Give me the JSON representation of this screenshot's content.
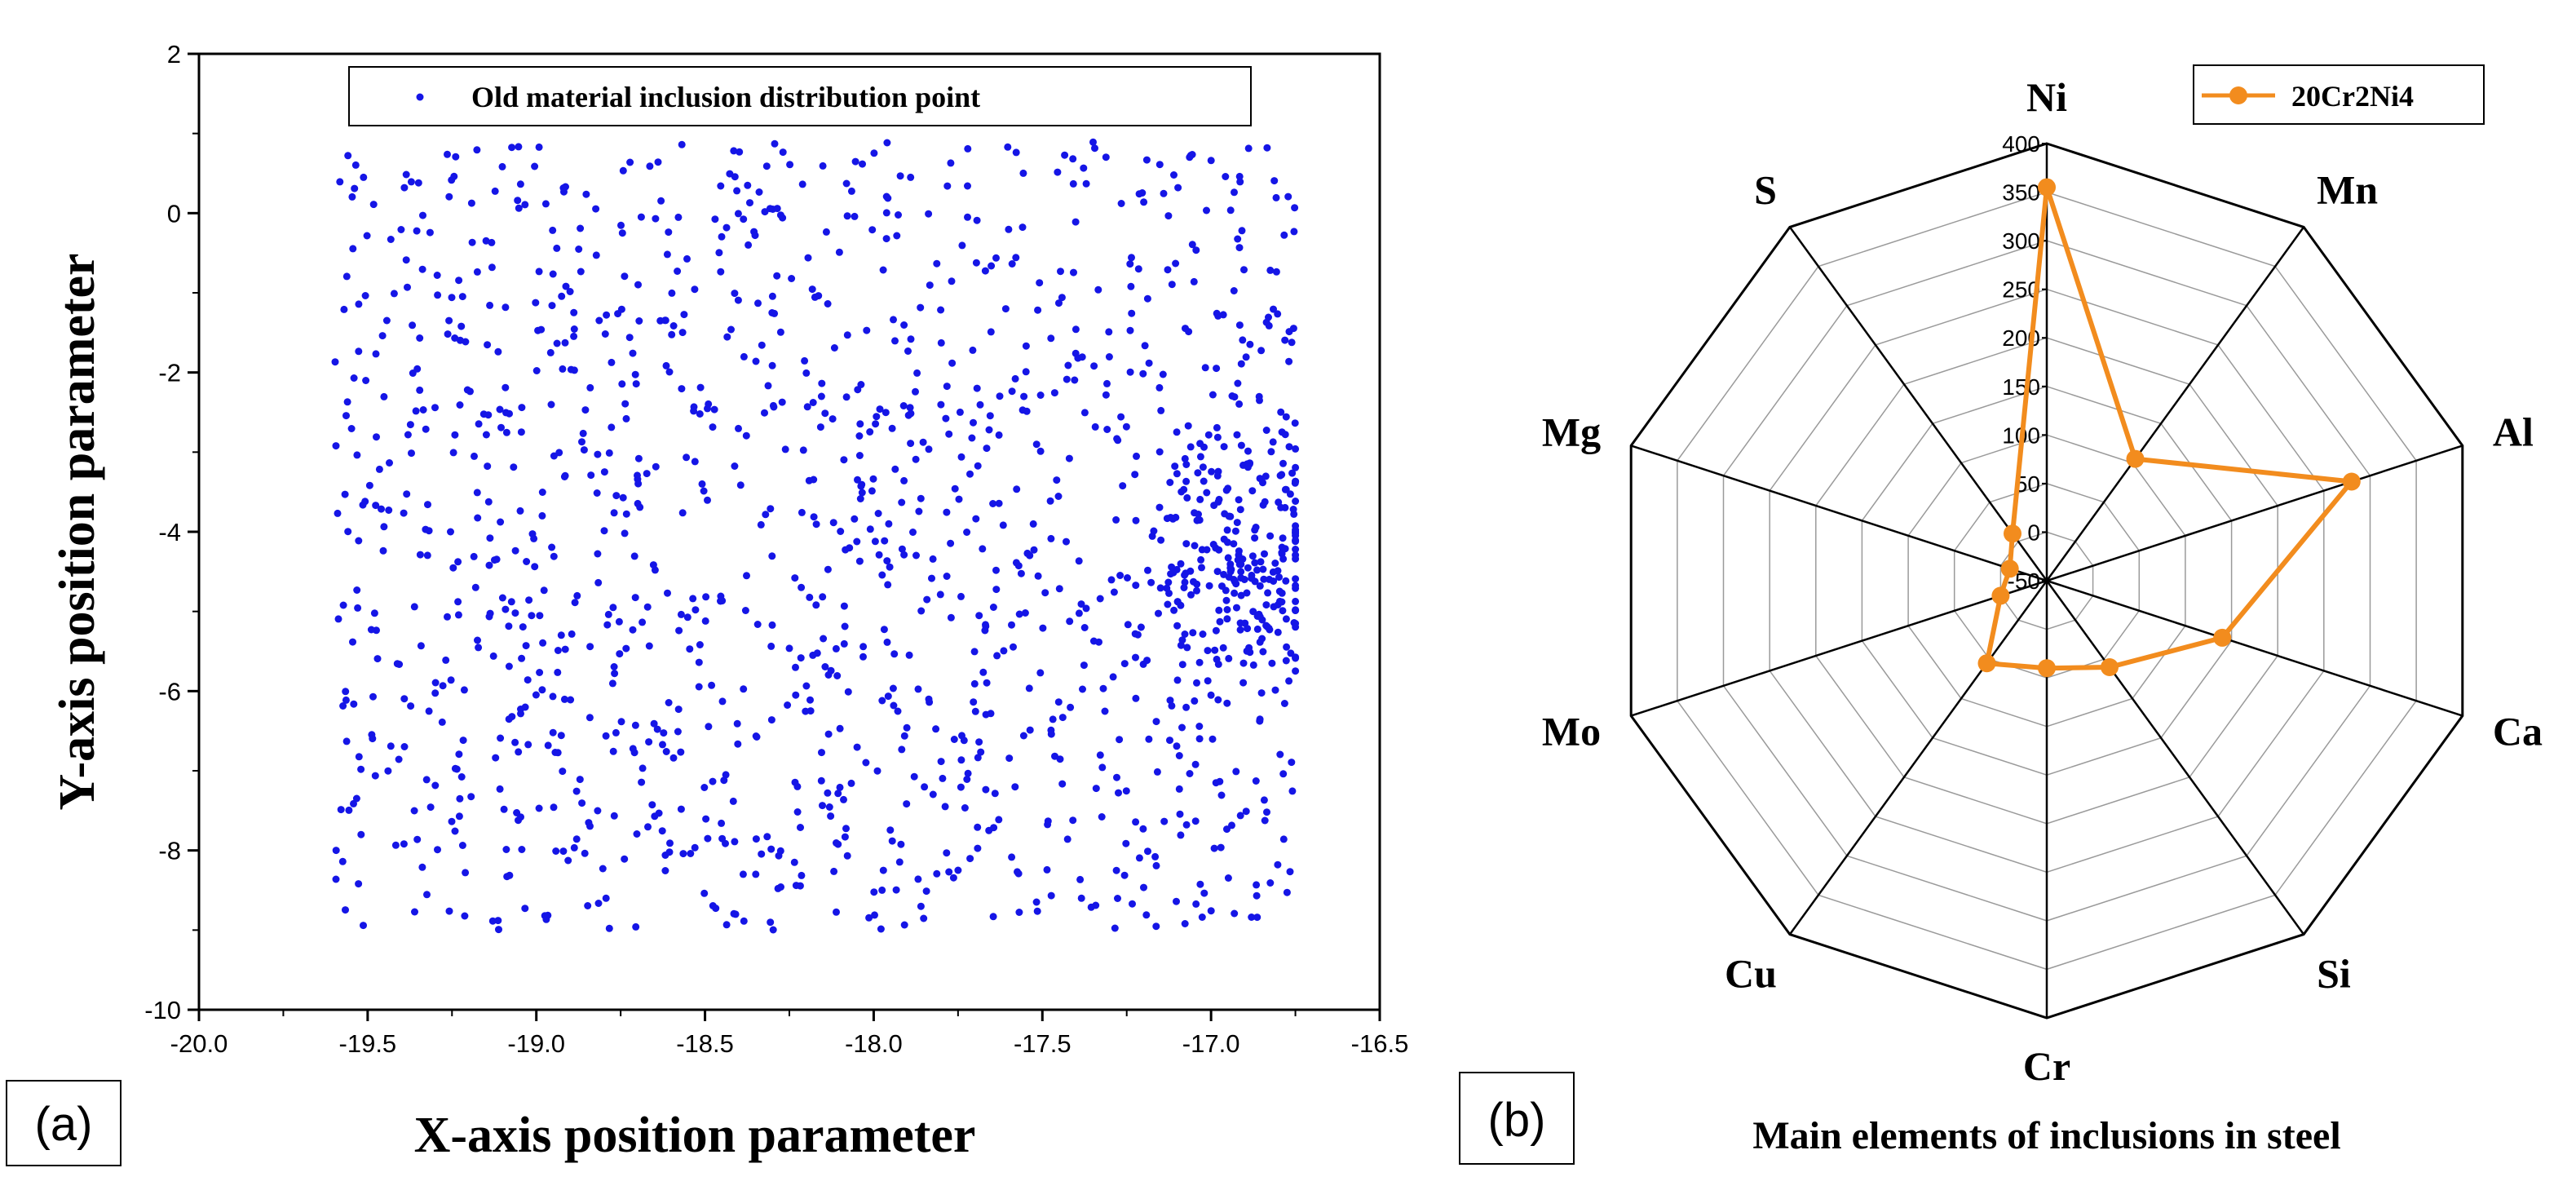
{
  "chart_data": [
    {
      "type": "scatter",
      "panel_label": "(a)",
      "xlabel": "X-axis position parameter",
      "ylabel": "Y-axis position parameter",
      "xlim": [
        -20.0,
        -16.5
      ],
      "ylim": [
        -10,
        2
      ],
      "xticks": [
        "-20.0",
        "-19.5",
        "-19.0",
        "-18.5",
        "-18.0",
        "-17.5",
        "-17.0",
        "-16.5"
      ],
      "yticks": [
        "-10",
        "-8",
        "-6",
        "-4",
        "-2",
        "0",
        "2"
      ],
      "legend": "Old material inclusion distribution point",
      "point_count": 1500,
      "point_color": "#1515e6",
      "x_range_of_points": [
        -19.6,
        -16.75
      ],
      "y_range_of_points": [
        -9.0,
        0.9
      ],
      "cluster_center": [
        -16.9,
        -4.2
      ]
    },
    {
      "type": "radar",
      "panel_label": "(b)",
      "title": "Main elements of inclusions in steel",
      "series_name": "20Cr2Ni4",
      "series_color": "#f28c1e",
      "axes": [
        "Ni",
        "Mn",
        "Al",
        "Ca",
        "Si",
        "Cr",
        "Cu",
        "Mo",
        "Mg",
        "S"
      ],
      "values": [
        355,
        105,
        280,
        140,
        60,
        40,
        55,
        0,
        -10,
        10
      ],
      "range": [
        -50,
        400
      ],
      "ticks": [
        "-50",
        "0",
        "50",
        "100",
        "150",
        "200",
        "250",
        "300",
        "350",
        "400"
      ]
    }
  ]
}
